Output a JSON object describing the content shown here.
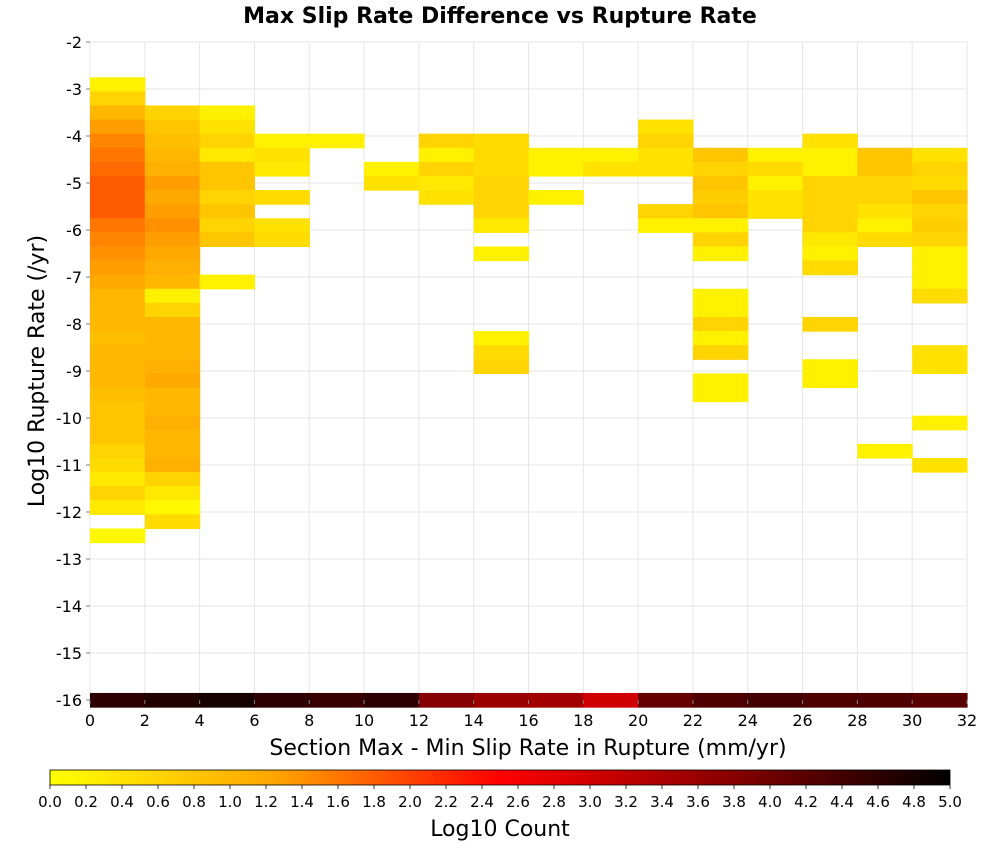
{
  "chart_data": {
    "type": "heatmap",
    "title": "Max Slip Rate Difference vs Rupture Rate",
    "xlabel": "Section Max - Min Slip Rate in Rupture (mm/yr)",
    "ylabel": "Log10 Rupture Rate (/yr)",
    "xlim": [
      0,
      32
    ],
    "ylim": [
      -16,
      -2
    ],
    "x_ticks": [
      "0",
      "2",
      "4",
      "6",
      "8",
      "10",
      "12",
      "14",
      "16",
      "18",
      "20",
      "22",
      "24",
      "26",
      "28",
      "30",
      "32"
    ],
    "y_ticks": [
      "-2",
      "-3",
      "-4",
      "-5",
      "-6",
      "-7",
      "-8",
      "-9",
      "-10",
      "-11",
      "-12",
      "-13",
      "-14",
      "-15",
      "-16"
    ],
    "grid": true,
    "x_bin_width": 2,
    "y_bin_height": 0.3,
    "colorbar": {
      "label": "Log10 Count",
      "range": [
        0,
        5
      ],
      "ticks": [
        "0.0",
        "0.2",
        "0.4",
        "0.6",
        "0.8",
        "1.0",
        "1.2",
        "1.4",
        "1.6",
        "1.8",
        "2.0",
        "2.2",
        "2.4",
        "2.6",
        "2.8",
        "3.0",
        "3.2",
        "3.4",
        "3.6",
        "3.8",
        "4.0",
        "4.2",
        "4.4",
        "4.6",
        "4.8",
        "5.0"
      ],
      "colors": [
        "#ffff00",
        "#ffa500",
        "#ff0000",
        "#8b0000",
        "#000000"
      ]
    },
    "cells": [
      {
        "x": 0,
        "y": -2.9,
        "v": 0.2
      },
      {
        "x": 0,
        "y": -3.2,
        "v": 0.6
      },
      {
        "x": 0,
        "y": -3.5,
        "v": 1.0
      },
      {
        "x": 0,
        "y": -3.8,
        "v": 1.3
      },
      {
        "x": 0,
        "y": -4.1,
        "v": 1.5
      },
      {
        "x": 0,
        "y": -4.4,
        "v": 1.6
      },
      {
        "x": 0,
        "y": -4.7,
        "v": 1.7
      },
      {
        "x": 0,
        "y": -5.0,
        "v": 1.8
      },
      {
        "x": 0,
        "y": -5.3,
        "v": 1.8
      },
      {
        "x": 0,
        "y": -5.6,
        "v": 1.8
      },
      {
        "x": 0,
        "y": -5.9,
        "v": 1.6
      },
      {
        "x": 0,
        "y": -6.2,
        "v": 1.5
      },
      {
        "x": 0,
        "y": -6.5,
        "v": 1.4
      },
      {
        "x": 0,
        "y": -6.8,
        "v": 1.3
      },
      {
        "x": 0,
        "y": -7.1,
        "v": 1.2
      },
      {
        "x": 0,
        "y": -7.4,
        "v": 1.0
      },
      {
        "x": 0,
        "y": -7.7,
        "v": 1.0
      },
      {
        "x": 0,
        "y": -8.0,
        "v": 1.0
      },
      {
        "x": 0,
        "y": -8.3,
        "v": 0.9
      },
      {
        "x": 0,
        "y": -8.6,
        "v": 1.0
      },
      {
        "x": 0,
        "y": -8.9,
        "v": 1.0
      },
      {
        "x": 0,
        "y": -9.2,
        "v": 1.0
      },
      {
        "x": 0,
        "y": -9.5,
        "v": 0.9
      },
      {
        "x": 0,
        "y": -9.8,
        "v": 0.8
      },
      {
        "x": 0,
        "y": -10.1,
        "v": 0.8
      },
      {
        "x": 0,
        "y": -10.4,
        "v": 0.8
      },
      {
        "x": 0,
        "y": -10.7,
        "v": 0.6
      },
      {
        "x": 0,
        "y": -11.0,
        "v": 0.5
      },
      {
        "x": 0,
        "y": -11.3,
        "v": 0.3
      },
      {
        "x": 0,
        "y": -11.6,
        "v": 0.6
      },
      {
        "x": 0,
        "y": -11.9,
        "v": 0.3
      },
      {
        "x": 0,
        "y": -12.5,
        "v": 0.1
      },
      {
        "x": 2,
        "y": -3.5,
        "v": 0.6
      },
      {
        "x": 2,
        "y": -3.8,
        "v": 0.8
      },
      {
        "x": 2,
        "y": -4.1,
        "v": 0.9
      },
      {
        "x": 2,
        "y": -4.4,
        "v": 1.0
      },
      {
        "x": 2,
        "y": -4.7,
        "v": 1.1
      },
      {
        "x": 2,
        "y": -5.0,
        "v": 1.3
      },
      {
        "x": 2,
        "y": -5.3,
        "v": 1.2
      },
      {
        "x": 2,
        "y": -5.6,
        "v": 1.3
      },
      {
        "x": 2,
        "y": -5.9,
        "v": 1.4
      },
      {
        "x": 2,
        "y": -6.2,
        "v": 1.3
      },
      {
        "x": 2,
        "y": -6.5,
        "v": 1.2
      },
      {
        "x": 2,
        "y": -6.8,
        "v": 1.1
      },
      {
        "x": 2,
        "y": -7.1,
        "v": 1.0
      },
      {
        "x": 2,
        "y": -7.4,
        "v": 0.2
      },
      {
        "x": 2,
        "y": -7.7,
        "v": 0.6
      },
      {
        "x": 2,
        "y": -8.0,
        "v": 1.0
      },
      {
        "x": 2,
        "y": -8.3,
        "v": 1.0
      },
      {
        "x": 2,
        "y": -8.6,
        "v": 1.0
      },
      {
        "x": 2,
        "y": -8.9,
        "v": 1.1
      },
      {
        "x": 2,
        "y": -9.2,
        "v": 1.2
      },
      {
        "x": 2,
        "y": -9.5,
        "v": 1.0
      },
      {
        "x": 2,
        "y": -9.8,
        "v": 1.0
      },
      {
        "x": 2,
        "y": -10.1,
        "v": 1.1
      },
      {
        "x": 2,
        "y": -10.4,
        "v": 1.0
      },
      {
        "x": 2,
        "y": -10.7,
        "v": 1.0
      },
      {
        "x": 2,
        "y": -11.0,
        "v": 1.1
      },
      {
        "x": 2,
        "y": -11.3,
        "v": 0.6
      },
      {
        "x": 2,
        "y": -11.6,
        "v": 0.3
      },
      {
        "x": 2,
        "y": -11.9,
        "v": 0.1
      },
      {
        "x": 2,
        "y": -12.2,
        "v": 0.5
      },
      {
        "x": 4,
        "y": -3.5,
        "v": 0.2
      },
      {
        "x": 4,
        "y": -3.8,
        "v": 0.4
      },
      {
        "x": 4,
        "y": -4.1,
        "v": 0.6
      },
      {
        "x": 4,
        "y": -4.4,
        "v": 0.3
      },
      {
        "x": 4,
        "y": -4.7,
        "v": 0.8
      },
      {
        "x": 4,
        "y": -5.0,
        "v": 0.8
      },
      {
        "x": 4,
        "y": -5.3,
        "v": 0.6
      },
      {
        "x": 4,
        "y": -5.6,
        "v": 0.8
      },
      {
        "x": 4,
        "y": -5.9,
        "v": 0.6
      },
      {
        "x": 4,
        "y": -6.2,
        "v": 0.8
      },
      {
        "x": 4,
        "y": -7.1,
        "v": 0.2
      },
      {
        "x": 6,
        "y": -4.1,
        "v": 0.2
      },
      {
        "x": 6,
        "y": -4.4,
        "v": 0.4
      },
      {
        "x": 6,
        "y": -4.7,
        "v": 0.3
      },
      {
        "x": 6,
        "y": -5.3,
        "v": 0.5
      },
      {
        "x": 6,
        "y": -5.9,
        "v": 0.4
      },
      {
        "x": 6,
        "y": -6.2,
        "v": 0.5
      },
      {
        "x": 8,
        "y": -4.1,
        "v": 0.2
      },
      {
        "x": 10,
        "y": -4.7,
        "v": 0.2
      },
      {
        "x": 10,
        "y": -5.0,
        "v": 0.4
      },
      {
        "x": 12,
        "y": -4.1,
        "v": 0.6
      },
      {
        "x": 12,
        "y": -4.4,
        "v": 0.2
      },
      {
        "x": 12,
        "y": -4.7,
        "v": 0.6
      },
      {
        "x": 12,
        "y": -5.0,
        "v": 0.3
      },
      {
        "x": 12,
        "y": -5.3,
        "v": 0.4
      },
      {
        "x": 14,
        "y": -4.1,
        "v": 0.5
      },
      {
        "x": 14,
        "y": -4.4,
        "v": 0.5
      },
      {
        "x": 14,
        "y": -4.7,
        "v": 0.5
      },
      {
        "x": 14,
        "y": -5.0,
        "v": 0.6
      },
      {
        "x": 14,
        "y": -5.3,
        "v": 0.6
      },
      {
        "x": 14,
        "y": -5.6,
        "v": 0.6
      },
      {
        "x": 14,
        "y": -5.9,
        "v": 0.3
      },
      {
        "x": 14,
        "y": -6.5,
        "v": 0.2
      },
      {
        "x": 14,
        "y": -8.3,
        "v": 0.2
      },
      {
        "x": 14,
        "y": -8.6,
        "v": 0.5
      },
      {
        "x": 14,
        "y": -8.9,
        "v": 0.6
      },
      {
        "x": 16,
        "y": -4.4,
        "v": 0.2
      },
      {
        "x": 16,
        "y": -4.7,
        "v": 0.2
      },
      {
        "x": 16,
        "y": -5.3,
        "v": 0.2
      },
      {
        "x": 18,
        "y": -4.4,
        "v": 0.2
      },
      {
        "x": 18,
        "y": -4.7,
        "v": 0.4
      },
      {
        "x": 20,
        "y": -3.8,
        "v": 0.4
      },
      {
        "x": 20,
        "y": -4.1,
        "v": 0.6
      },
      {
        "x": 20,
        "y": -4.4,
        "v": 0.4
      },
      {
        "x": 20,
        "y": -4.7,
        "v": 0.4
      },
      {
        "x": 20,
        "y": -5.6,
        "v": 0.6
      },
      {
        "x": 20,
        "y": -5.9,
        "v": 0.2
      },
      {
        "x": 22,
        "y": -4.4,
        "v": 0.8
      },
      {
        "x": 22,
        "y": -4.7,
        "v": 0.6
      },
      {
        "x": 22,
        "y": -5.0,
        "v": 0.8
      },
      {
        "x": 22,
        "y": -5.3,
        "v": 0.7
      },
      {
        "x": 22,
        "y": -5.6,
        "v": 0.8
      },
      {
        "x": 22,
        "y": -5.9,
        "v": 0.2
      },
      {
        "x": 22,
        "y": -6.2,
        "v": 0.6
      },
      {
        "x": 22,
        "y": -6.5,
        "v": 0.2
      },
      {
        "x": 22,
        "y": -7.4,
        "v": 0.2
      },
      {
        "x": 22,
        "y": -7.7,
        "v": 0.2
      },
      {
        "x": 22,
        "y": -8.0,
        "v": 0.6
      },
      {
        "x": 22,
        "y": -8.3,
        "v": 0.2
      },
      {
        "x": 22,
        "y": -8.6,
        "v": 0.6
      },
      {
        "x": 22,
        "y": -9.2,
        "v": 0.2
      },
      {
        "x": 22,
        "y": -9.5,
        "v": 0.2
      },
      {
        "x": 24,
        "y": -4.4,
        "v": 0.2
      },
      {
        "x": 24,
        "y": -4.7,
        "v": 0.5
      },
      {
        "x": 24,
        "y": -5.0,
        "v": 0.2
      },
      {
        "x": 24,
        "y": -5.3,
        "v": 0.4
      },
      {
        "x": 24,
        "y": -5.6,
        "v": 0.4
      },
      {
        "x": 26,
        "y": -4.1,
        "v": 0.4
      },
      {
        "x": 26,
        "y": -4.4,
        "v": 0.2
      },
      {
        "x": 26,
        "y": -4.7,
        "v": 0.2
      },
      {
        "x": 26,
        "y": -5.0,
        "v": 0.6
      },
      {
        "x": 26,
        "y": -5.3,
        "v": 0.6
      },
      {
        "x": 26,
        "y": -5.6,
        "v": 0.6
      },
      {
        "x": 26,
        "y": -5.9,
        "v": 0.6
      },
      {
        "x": 26,
        "y": -6.2,
        "v": 0.3
      },
      {
        "x": 26,
        "y": -6.5,
        "v": 0.2
      },
      {
        "x": 26,
        "y": -6.8,
        "v": 0.5
      },
      {
        "x": 26,
        "y": -8.0,
        "v": 0.6
      },
      {
        "x": 26,
        "y": -8.9,
        "v": 0.2
      },
      {
        "x": 26,
        "y": -9.2,
        "v": 0.2
      },
      {
        "x": 28,
        "y": -4.4,
        "v": 0.8
      },
      {
        "x": 28,
        "y": -4.7,
        "v": 0.8
      },
      {
        "x": 28,
        "y": -5.0,
        "v": 0.6
      },
      {
        "x": 28,
        "y": -5.3,
        "v": 0.6
      },
      {
        "x": 28,
        "y": -5.6,
        "v": 0.4
      },
      {
        "x": 28,
        "y": -5.9,
        "v": 0.2
      },
      {
        "x": 28,
        "y": -6.2,
        "v": 0.5
      },
      {
        "x": 28,
        "y": -10.7,
        "v": 0.2
      },
      {
        "x": 30,
        "y": -4.4,
        "v": 0.4
      },
      {
        "x": 30,
        "y": -4.7,
        "v": 0.6
      },
      {
        "x": 30,
        "y": -5.0,
        "v": 0.5
      },
      {
        "x": 30,
        "y": -5.3,
        "v": 0.8
      },
      {
        "x": 30,
        "y": -5.6,
        "v": 0.6
      },
      {
        "x": 30,
        "y": -5.9,
        "v": 0.7
      },
      {
        "x": 30,
        "y": -6.2,
        "v": 0.6
      },
      {
        "x": 30,
        "y": -6.5,
        "v": 0.2
      },
      {
        "x": 30,
        "y": -6.8,
        "v": 0.2
      },
      {
        "x": 30,
        "y": -7.1,
        "v": 0.2
      },
      {
        "x": 30,
        "y": -7.4,
        "v": 0.5
      },
      {
        "x": 30,
        "y": -8.6,
        "v": 0.4
      },
      {
        "x": 30,
        "y": -8.9,
        "v": 0.4
      },
      {
        "x": 30,
        "y": -10.1,
        "v": 0.2
      },
      {
        "x": 30,
        "y": -11.0,
        "v": 0.4
      },
      {
        "x": 0,
        "y": -16.0,
        "v": 4.6
      },
      {
        "x": 2,
        "y": -16.0,
        "v": 4.7
      },
      {
        "x": 4,
        "y": -16.0,
        "v": 4.8
      },
      {
        "x": 6,
        "y": -16.0,
        "v": 4.6
      },
      {
        "x": 8,
        "y": -16.0,
        "v": 4.5
      },
      {
        "x": 10,
        "y": -16.0,
        "v": 4.6
      },
      {
        "x": 12,
        "y": -16.0,
        "v": 3.8
      },
      {
        "x": 14,
        "y": -16.0,
        "v": 3.6
      },
      {
        "x": 16,
        "y": -16.0,
        "v": 3.5
      },
      {
        "x": 18,
        "y": -16.0,
        "v": 3.0
      },
      {
        "x": 20,
        "y": -16.0,
        "v": 4.1
      },
      {
        "x": 22,
        "y": -16.0,
        "v": 4.3
      },
      {
        "x": 24,
        "y": -16.0,
        "v": 4.4
      },
      {
        "x": 26,
        "y": -16.0,
        "v": 4.3
      },
      {
        "x": 28,
        "y": -16.0,
        "v": 4.3
      },
      {
        "x": 30,
        "y": -16.0,
        "v": 4.2
      }
    ]
  }
}
